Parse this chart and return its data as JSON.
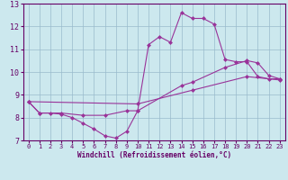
{
  "xlabel": "Windchill (Refroidissement éolien,°C)",
  "bg_color": "#cce8ee",
  "line_color": "#993399",
  "grid_color": "#99bbcc",
  "axis_color": "#660066",
  "text_color": "#660066",
  "xlim": [
    -0.5,
    23.5
  ],
  "ylim": [
    7,
    13
  ],
  "yticks": [
    7,
    8,
    9,
    10,
    11,
    12,
    13
  ],
  "xticks": [
    0,
    1,
    2,
    3,
    4,
    5,
    6,
    7,
    8,
    9,
    10,
    11,
    12,
    13,
    14,
    15,
    16,
    17,
    18,
    19,
    20,
    21,
    22,
    23
  ],
  "line1_x": [
    0,
    1,
    2,
    3,
    4,
    5,
    6,
    7,
    8,
    9,
    10,
    11,
    12,
    13,
    14,
    15,
    16,
    17,
    18,
    19,
    20,
    21,
    22,
    23
  ],
  "line1_y": [
    8.7,
    8.2,
    8.2,
    8.15,
    8.0,
    7.75,
    7.5,
    7.2,
    7.1,
    7.4,
    8.3,
    11.2,
    11.55,
    11.3,
    12.6,
    12.35,
    12.35,
    12.1,
    10.55,
    10.45,
    10.45,
    9.8,
    9.7,
    9.7
  ],
  "line2_x": [
    0,
    1,
    3,
    5,
    7,
    9,
    10,
    14,
    15,
    18,
    20,
    21,
    22,
    23
  ],
  "line2_y": [
    8.7,
    8.2,
    8.2,
    8.1,
    8.1,
    8.3,
    8.3,
    9.4,
    9.55,
    10.2,
    10.5,
    10.4,
    9.85,
    9.7
  ],
  "line3_x": [
    0,
    10,
    15,
    20,
    23
  ],
  "line3_y": [
    8.7,
    8.6,
    9.2,
    9.8,
    9.65
  ],
  "markersize": 2.5
}
